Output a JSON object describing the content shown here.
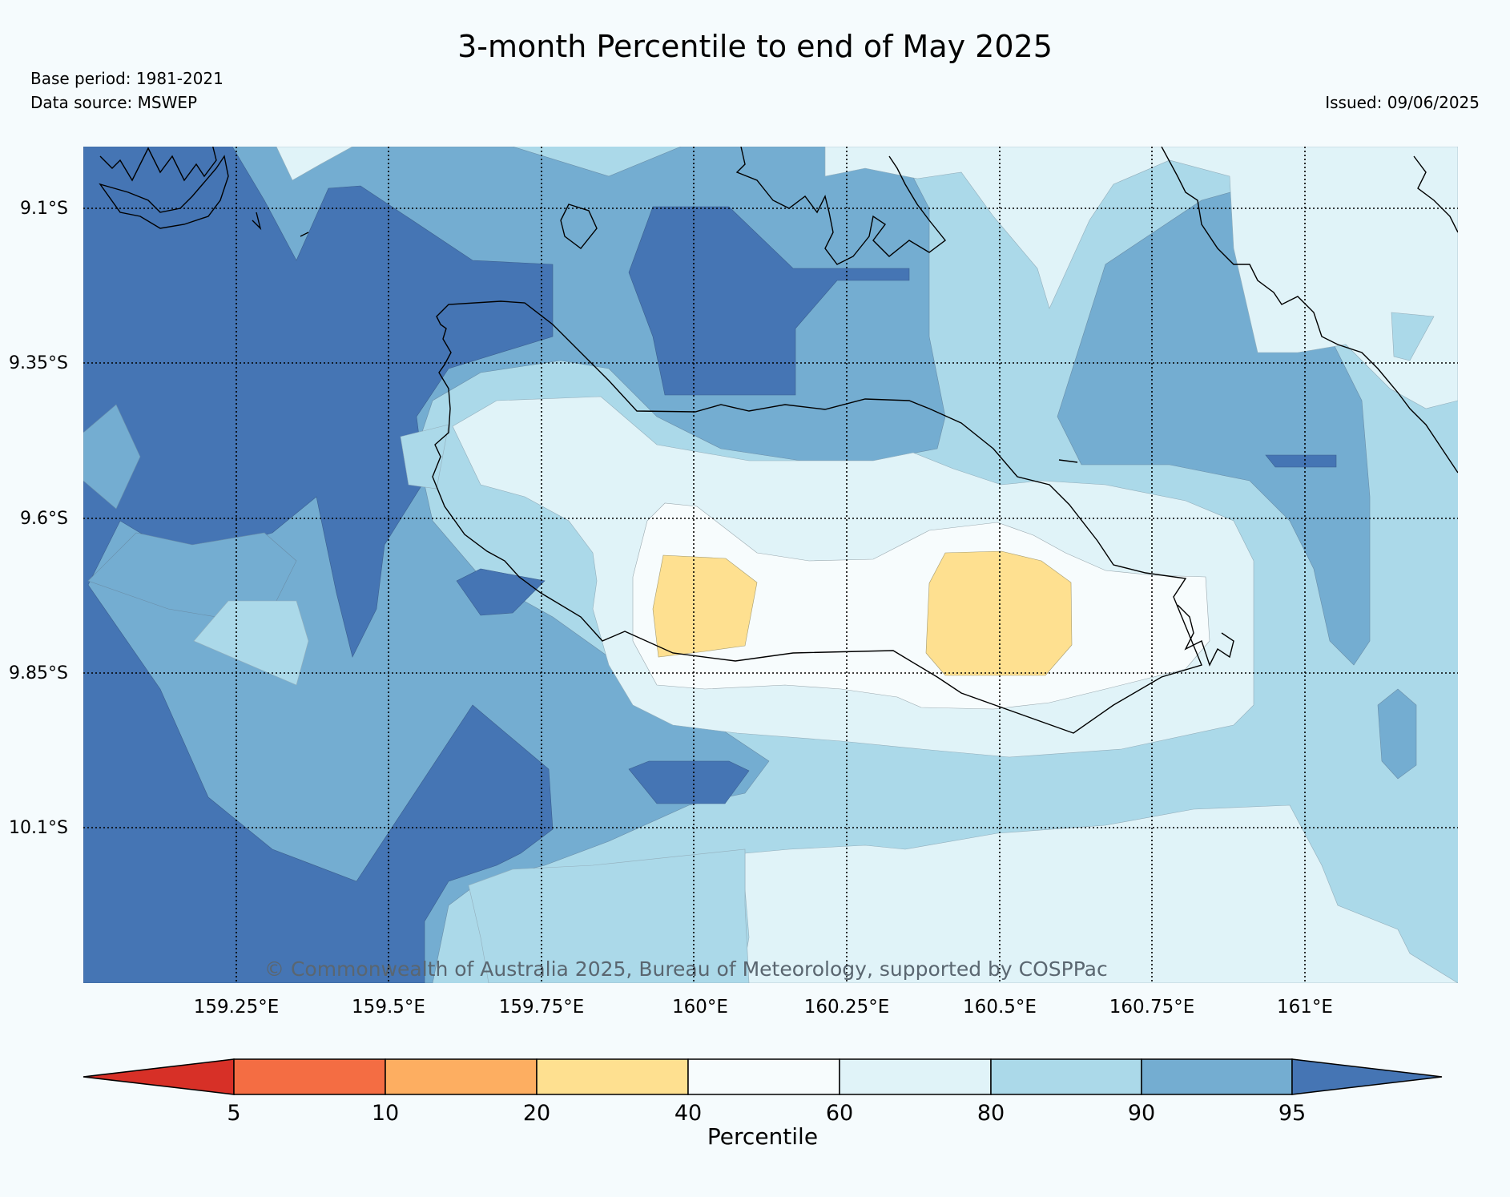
{
  "title": "3-month Percentile to end of May 2025",
  "base_period": "Base period: 1981-2021",
  "data_source": "Data source: MSWEP",
  "issued": "Issued: 09/06/2025",
  "copyright": "© Commonwealth of Australia 2025, Bureau of Meteorology, supported by COSPPac",
  "map": {
    "latitude_labels": [
      "9.1°S",
      "9.35°S",
      "9.6°S",
      "9.85°S",
      "10.1°S"
    ],
    "longitude_labels": [
      "159.25°E",
      "159.5°E",
      "159.75°E",
      "160°E",
      "160.25°E",
      "160.5°E",
      "160.75°E",
      "161°E"
    ]
  },
  "legend": {
    "label": "Percentile",
    "ticks": [
      "5",
      "10",
      "20",
      "40",
      "60",
      "80",
      "90",
      "95"
    ],
    "bins": [
      {
        "range": "<5",
        "color": "#d73027"
      },
      {
        "range": "5-10",
        "color": "#f46d43"
      },
      {
        "range": "10-20",
        "color": "#fdae61"
      },
      {
        "range": "20-40",
        "color": "#fee090"
      },
      {
        "range": "40-60",
        "color": "#f7fcfd"
      },
      {
        "range": "60-80",
        "color": "#e0f3f8"
      },
      {
        "range": "80-90",
        "color": "#abd9e9"
      },
      {
        "range": "90-95",
        "color": "#74add1"
      },
      {
        "range": ">95",
        "color": "#4575b4"
      }
    ]
  }
}
